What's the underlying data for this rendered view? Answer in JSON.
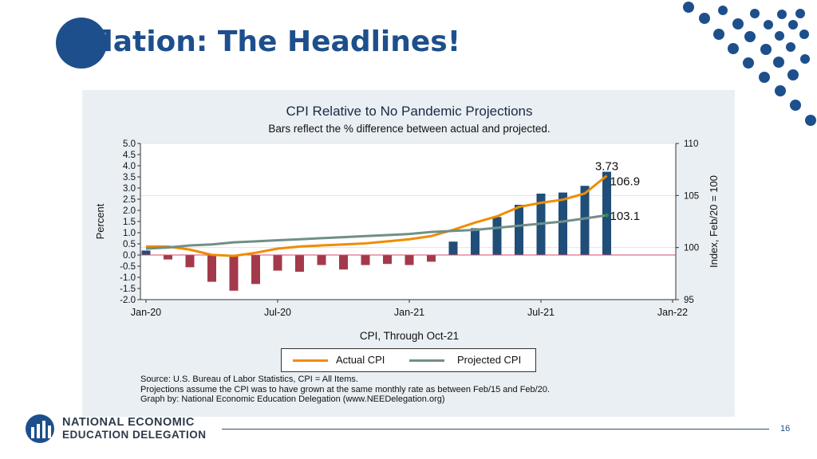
{
  "slide": {
    "title": "Inflation: The Headlines!",
    "page_number": "16",
    "logo_line1": "NATIONAL ECONOMIC",
    "logo_line2": "EDUCATION DELEGATION"
  },
  "chart_data": {
    "type": "bar",
    "title": "CPI Relative to No Pandemic Projections",
    "subtitle": "Bars reflect the % difference between actual and projected.",
    "xlabel": "CPI, Through Oct-21",
    "ylabel_left": "Percent",
    "ylabel_right": "Index, Feb/20 = 100",
    "x_ticks": [
      "Jan-20",
      "Jul-20",
      "Jan-21",
      "Jul-21",
      "Jan-22"
    ],
    "ylim_left": [
      -2.0,
      5.0
    ],
    "yticks_left": [
      "5.0",
      "4.5",
      "4.0",
      "3.5",
      "3.0",
      "2.5",
      "2.0",
      "1.5",
      "1.0",
      "0.5",
      "0.0",
      "-0.5",
      "-1.0",
      "-1.5",
      "-2.0"
    ],
    "ylim_right": [
      95,
      110
    ],
    "yticks_right": [
      "110",
      "105",
      "100",
      "95"
    ],
    "months": [
      "Jan-20",
      "Feb-20",
      "Mar-20",
      "Apr-20",
      "May-20",
      "Jun-20",
      "Jul-20",
      "Aug-20",
      "Sep-20",
      "Oct-20",
      "Nov-20",
      "Dec-20",
      "Jan-21",
      "Feb-21",
      "Mar-21",
      "Apr-21",
      "May-21",
      "Jun-21",
      "Jul-21",
      "Aug-21",
      "Sep-21",
      "Oct-21"
    ],
    "bars_percent": [
      0.2,
      -0.2,
      -0.55,
      -1.2,
      -1.6,
      -1.3,
      -0.7,
      -0.75,
      -0.45,
      -0.65,
      -0.45,
      -0.4,
      -0.45,
      -0.3,
      0.6,
      1.2,
      1.7,
      2.25,
      2.75,
      2.8,
      3.1,
      3.73
    ],
    "series": [
      {
        "name": "Actual CPI",
        "color": "#f08c00",
        "values": [
          100.1,
          100.1,
          99.8,
          99.3,
          99.2,
          99.5,
          99.9,
          100.1,
          100.2,
          100.3,
          100.4,
          100.6,
          100.8,
          101.1,
          101.7,
          102.4,
          103.0,
          103.9,
          104.3,
          104.6,
          105.2,
          106.9
        ]
      },
      {
        "name": "Projected CPI",
        "color": "#708f88",
        "values": [
          99.9,
          100.0,
          100.2,
          100.3,
          100.5,
          100.6,
          100.7,
          100.8,
          100.9,
          101.0,
          101.1,
          101.2,
          101.3,
          101.5,
          101.6,
          101.7,
          101.9,
          102.1,
          102.3,
          102.5,
          102.8,
          103.1
        ]
      }
    ],
    "annotations": [
      "3.73",
      "106.9",
      "103.1"
    ],
    "bar_colors": {
      "positive": "#1f4e79",
      "negative": "#a33a4b"
    },
    "zero_line_color": "#d94b6c",
    "notes": [
      "Source: U.S. Bureau of Labor Statistics, CPI = All Items.",
      "Projections assume the CPI was to have grown at the same monthly rate as between Feb/15 and Feb/20.",
      "Graph by: National Economic Education Delegation (www.NEEDelegation.org)"
    ]
  }
}
